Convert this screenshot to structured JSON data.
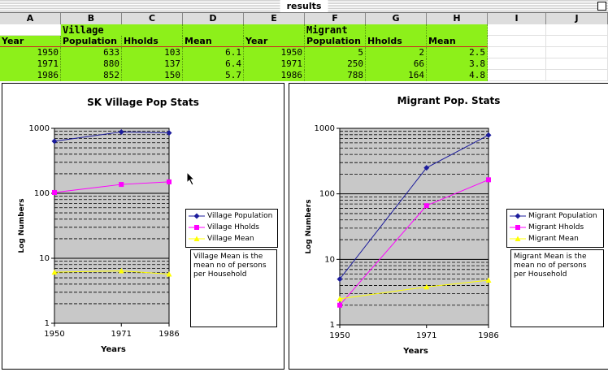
{
  "window": {
    "title": "results"
  },
  "sheet": {
    "columns": [
      "A",
      "B",
      "C",
      "D",
      "E",
      "F",
      "G",
      "H",
      "I",
      "J"
    ],
    "group_labels": {
      "village": "Village",
      "migrant": "Migrant"
    },
    "headers": [
      "Year",
      "Population",
      "Hholds",
      "Mean",
      "Year",
      "Population",
      "Hholds",
      "Mean"
    ],
    "rows": [
      [
        "1950",
        "633",
        "103",
        "6.1",
        "1950",
        "5",
        "2",
        "2.5"
      ],
      [
        "1971",
        "880",
        "137",
        "6.4",
        "1971",
        "250",
        "66",
        "3.8"
      ],
      [
        "1986",
        "852",
        "150",
        "5.7",
        "1986",
        "788",
        "164",
        "4.8"
      ]
    ]
  },
  "chart_data": [
    {
      "type": "line",
      "title": "SK Village Pop Stats",
      "xlabel": "Years",
      "ylabel": "Log Numbers",
      "x": [
        1950,
        1971,
        1986
      ],
      "x_ticks": [
        "1950",
        "1971",
        "1986"
      ],
      "y_scale": "log",
      "ylim": [
        1,
        1000
      ],
      "y_ticks": [
        "1",
        "10",
        "100",
        "1000"
      ],
      "grid": true,
      "legend": "right",
      "series": [
        {
          "name": "Village Population",
          "values": [
            633,
            880,
            852
          ],
          "color": "#1c1c9c",
          "marker": "diamond"
        },
        {
          "name": "Village Hholds",
          "values": [
            103,
            137,
            150
          ],
          "color": "#ff00ff",
          "marker": "square"
        },
        {
          "name": "Village Mean",
          "values": [
            6.1,
            6.4,
            5.7
          ],
          "color": "#ffff00",
          "marker": "triangle"
        }
      ],
      "note": "Village Mean is the mean no of persons per Household"
    },
    {
      "type": "line",
      "title": "Migrant Pop. Stats",
      "xlabel": "Years",
      "ylabel": "Log Numbers",
      "x": [
        1950,
        1971,
        1986
      ],
      "x_ticks": [
        "1950",
        "1971",
        "1986"
      ],
      "y_scale": "log",
      "ylim": [
        1,
        1000
      ],
      "y_ticks": [
        "1",
        "10",
        "100",
        "1000"
      ],
      "grid": true,
      "legend": "right",
      "series": [
        {
          "name": "Migrant Population",
          "values": [
            5,
            250,
            788
          ],
          "color": "#1c1c9c",
          "marker": "diamond"
        },
        {
          "name": "Migrant Hholds",
          "values": [
            2,
            66,
            164
          ],
          "color": "#ff00ff",
          "marker": "square"
        },
        {
          "name": "Migrant Mean",
          "values": [
            2.5,
            3.8,
            4.8
          ],
          "color": "#ffff00",
          "marker": "triangle"
        }
      ],
      "note": "Migrant Mean is the mean no of persons per Household"
    }
  ]
}
